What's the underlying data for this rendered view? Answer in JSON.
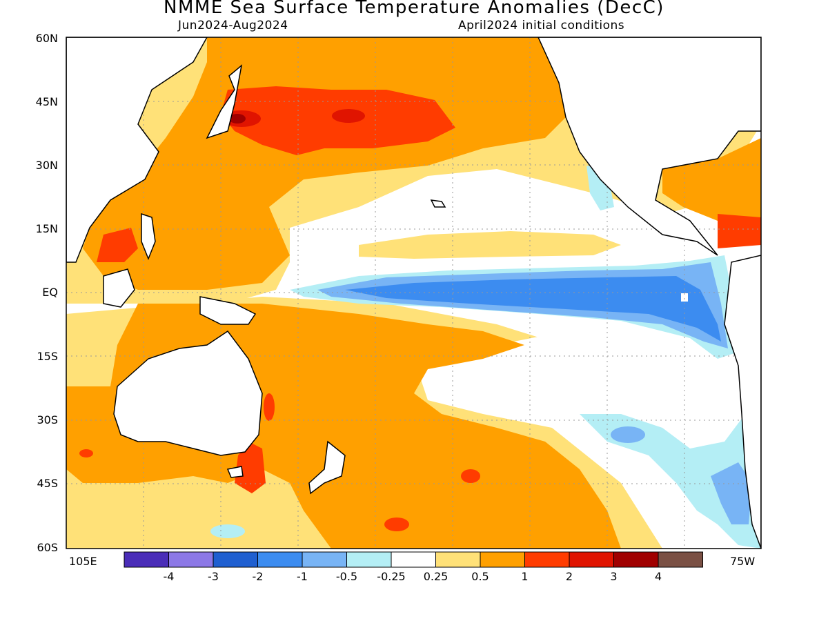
{
  "header": {
    "title": "NMME Sea Surface Temperature Anomalies (DecC)",
    "period": "Jun2024-Aug2024",
    "init": "April2024 initial conditions"
  },
  "axes": {
    "lat_labels": [
      "60N",
      "45N",
      "30N",
      "15N",
      "EQ",
      "15S",
      "30S",
      "45S",
      "60S"
    ],
    "lat_values": [
      60,
      45,
      30,
      15,
      0,
      -15,
      -30,
      -45,
      -60
    ],
    "lon_left": "105E",
    "lon_right": "75W"
  },
  "colorbar": {
    "labels": [
      "-4",
      "-3",
      "-2",
      "-1",
      "-0.5",
      "-0.25",
      "0.25",
      "0.5",
      "1",
      "2",
      "3",
      "4"
    ],
    "colors": [
      "#4a2db8",
      "#8c78e6",
      "#1f5fd0",
      "#3c8cf0",
      "#78b4f5",
      "#b4eef5",
      "#ffffff",
      "#ffe178",
      "#ffa000",
      "#ff3c00",
      "#e01400",
      "#a00000",
      "#7a5044"
    ]
  },
  "map": {
    "projection": "cylindrical",
    "lon_range": [
      "105E",
      "75W"
    ],
    "lat_range": [
      -60,
      60
    ],
    "grid": "dotted every 15 degrees",
    "ocean_background": "#ffffff",
    "land": "white with black coastlines",
    "features": [
      {
        "name": "equatorial cold tongue",
        "anomaly": "-1 to -2"
      },
      {
        "name": "north pacific warm band",
        "anomaly": "0.5 to 2"
      },
      {
        "name": "southwest pacific warm area",
        "anomaly": "0.5 to 1"
      },
      {
        "name": "southeast pacific cool area",
        "anomaly": "-0.25 to -1"
      }
    ]
  }
}
